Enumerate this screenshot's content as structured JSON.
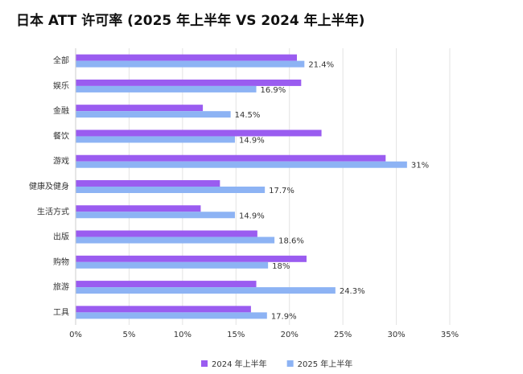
{
  "chart_data": {
    "type": "hbar",
    "title": "日本 ATT 许可率 (2025 年上半年 VS 2024 年上半年)",
    "categories": [
      "全部",
      "娱乐",
      "金融",
      "餐饮",
      "游戏",
      "健康及健身",
      "生活方式",
      "出版",
      "购物",
      "旅游",
      "工具"
    ],
    "series": [
      {
        "name": "2024 年上半年",
        "color": "#9a5cf0",
        "values": [
          20.7,
          21.1,
          11.9,
          23.0,
          29.0,
          13.5,
          11.7,
          17.0,
          21.6,
          16.9,
          16.4
        ]
      },
      {
        "name": "2025 年上半年",
        "color": "#8db3f4",
        "values": [
          21.4,
          16.9,
          14.5,
          14.9,
          31,
          17.7,
          14.9,
          18.6,
          18,
          24.3,
          17.9
        ],
        "value_labels": [
          "21.4%",
          "16.9%",
          "14.5%",
          "14.9%",
          "31%",
          "17.7%",
          "14.9%",
          "18.6%",
          "18%",
          "24.3%",
          "17.9%"
        ]
      }
    ],
    "xlim": [
      0,
      35
    ],
    "xticks": [
      {
        "value": 0,
        "label": "0%"
      },
      {
        "value": 5,
        "label": "5%"
      },
      {
        "value": 10,
        "label": "10%"
      },
      {
        "value": 15,
        "label": "15%"
      },
      {
        "value": 20,
        "label": "20%"
      },
      {
        "value": 25,
        "label": "25%"
      },
      {
        "value": 30,
        "label": "30%"
      },
      {
        "value": 35,
        "label": "35%"
      }
    ],
    "grid": true,
    "legend": "bottom"
  }
}
